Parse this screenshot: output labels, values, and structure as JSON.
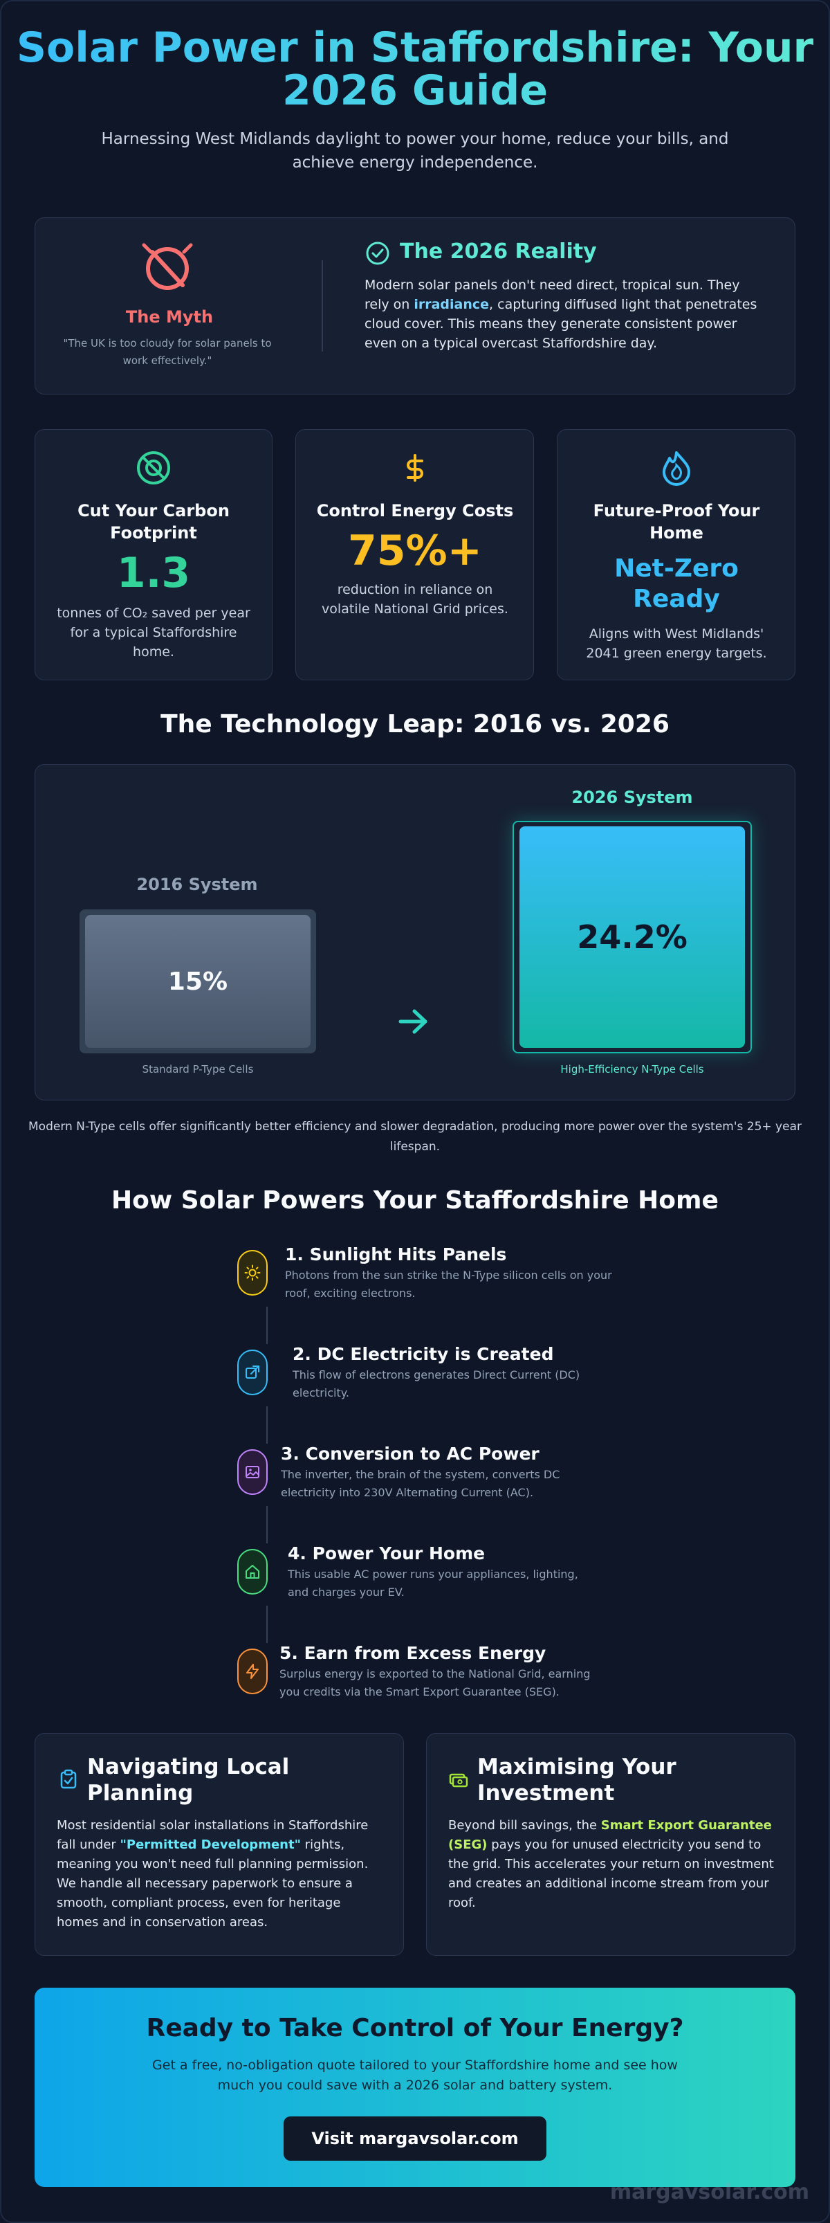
{
  "header": {
    "title": "Solar Power in Staffordshire: Your 2026 Guide",
    "subtitle": "Harnessing West Midlands daylight to power your home, reduce your bills, and achieve energy independence."
  },
  "myth": {
    "icon": "cloud-slash-icon",
    "title": "The Myth",
    "quote": "\"The UK is too cloudy for solar panels to work effectively.\""
  },
  "reality": {
    "icon": "check-circle-icon",
    "title": "The 2026 Reality",
    "text_before": "Modern solar panels don't need direct, tropical sun. They rely on ",
    "highlight": "irradiance",
    "text_after": ", capturing diffused light that penetrates cloud cover. This means they generate consistent power even on a typical overcast Staffordshire day."
  },
  "stats": [
    {
      "icon": "leaf-icon",
      "title": "Cut Your Carbon Footprint",
      "value": "1.3",
      "description": "tonnes of CO₂ saved per year for a typical Staffordshire home.",
      "color": "#34d399"
    },
    {
      "icon": "dollar-icon",
      "title": "Control Energy Costs",
      "value": "75%+",
      "description": "reduction in reliance on volatile National Grid prices.",
      "color": "#fbbf24"
    },
    {
      "icon": "flame-icon",
      "title": "Future-Proof Your Home",
      "value": "Net-Zero Ready",
      "description": "Aligns with West Midlands' 2041 green energy targets.",
      "color": "#38bdf8"
    }
  ],
  "comparison": {
    "title": "The Technology Leap: 2016 vs. 2026",
    "old": {
      "label": "2016 System",
      "value": "15%",
      "cell": "Standard P-Type Cells"
    },
    "new": {
      "label": "2026 System",
      "value": "24.2%",
      "cell": "High-Efficiency N-Type Cells"
    },
    "note": "Modern N-Type cells offer significantly better efficiency and slower degradation, producing more power over the system's 25+ year lifespan."
  },
  "steps_section": {
    "title": "How Solar Powers Your Staffordshire Home",
    "steps": [
      {
        "icon": "sun-icon",
        "title": "1. Sunlight Hits Panels",
        "description": "Photons from the sun strike the N-Type silicon cells on your roof, exciting electrons.",
        "color": "#facc15"
      },
      {
        "icon": "external-link-icon",
        "title": "2. DC Electricity is Created",
        "description": "This flow of electrons generates Direct Current (DC) electricity.",
        "color": "#38bdf8"
      },
      {
        "icon": "image-icon",
        "title": "3. Conversion to AC Power",
        "description": "The inverter, the brain of the system, converts DC electricity into 230V Alternating Current (AC).",
        "color": "#c084fc"
      },
      {
        "icon": "home-icon",
        "title": "4. Power Your Home",
        "description": "This usable AC power runs your appliances, lighting, and charges your EV.",
        "color": "#4ade80"
      },
      {
        "icon": "lightning-icon",
        "title": "5. Earn from Excess Energy",
        "description": "Surplus energy is exported to the National Grid, earning you credits via the Smart Export Guarantee (SEG).",
        "color": "#fb923c"
      }
    ]
  },
  "planning": {
    "icon": "clipboard-check-icon",
    "title": "Navigating Local Planning",
    "text_before": "Most residential solar installations in Staffordshire fall under ",
    "highlight": "\"Permitted Development\"",
    "text_after": " rights, meaning you won't need full planning permission. We handle all necessary paperwork to ensure a smooth, compliant process, even for heritage homes and in conservation areas."
  },
  "investment": {
    "icon": "banknote-icon",
    "title": "Maximising Your Investment",
    "text_before": "Beyond bill savings, the ",
    "highlight": "Smart Export Guarantee (SEG)",
    "text_after": " pays you for unused electricity you send to the grid. This accelerates your return on investment and creates an additional income stream from your roof."
  },
  "cta": {
    "title": "Ready to Take Control of Your Energy?",
    "text": "Get a free, no-obligation quote tailored to your Staffordshire home and see how much you could save with a 2026 solar and battery system.",
    "button": "Visit margavsolar.com"
  },
  "watermark": "margavsolar.com"
}
